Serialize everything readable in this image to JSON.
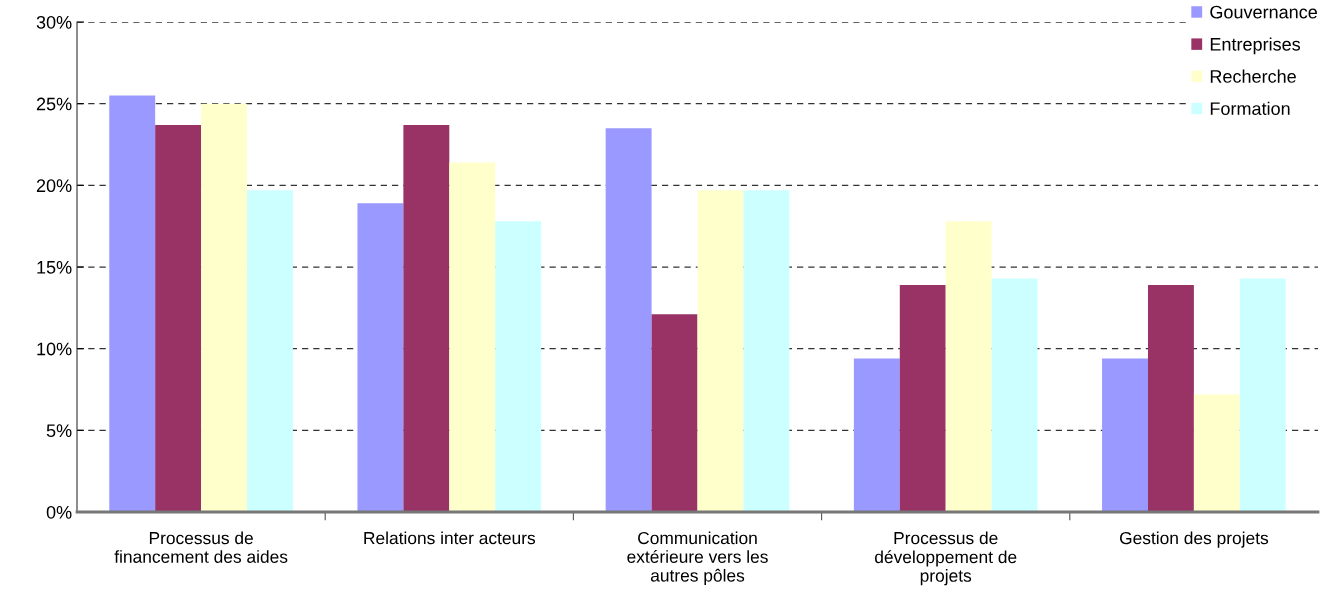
{
  "chart_data": {
    "type": "bar",
    "categories": [
      "Processus de\nfinancement des aides",
      "Relations inter acteurs",
      "Communication\nextérieure vers les\nautres pôles",
      "Processus de\ndéveloppement de\nprojets",
      "Gestion des projets"
    ],
    "series": [
      {
        "name": "Gouvernance",
        "color": "#9999ff",
        "values": [
          25.5,
          18.9,
          23.5,
          9.4,
          9.4
        ]
      },
      {
        "name": "Entreprises",
        "color": "#993366",
        "values": [
          23.7,
          23.7,
          12.1,
          13.9,
          13.9
        ]
      },
      {
        "name": "Recherche",
        "color": "#ffffcc",
        "values": [
          25.0,
          21.4,
          19.7,
          17.8,
          7.2
        ]
      },
      {
        "name": "Formation",
        "color": "#ccffff",
        "values": [
          19.7,
          17.8,
          19.7,
          14.3,
          14.3
        ]
      }
    ],
    "ylim": [
      0,
      30
    ],
    "yticks": [
      {
        "value": 0,
        "label": "0%"
      },
      {
        "value": 5,
        "label": "5%"
      },
      {
        "value": 10,
        "label": "10%"
      },
      {
        "value": 15,
        "label": "15%"
      },
      {
        "value": 20,
        "label": "20%"
      },
      {
        "value": 25,
        "label": "25%"
      },
      {
        "value": 30,
        "label": "30%"
      }
    ],
    "grid": "y",
    "legend": "top right"
  }
}
